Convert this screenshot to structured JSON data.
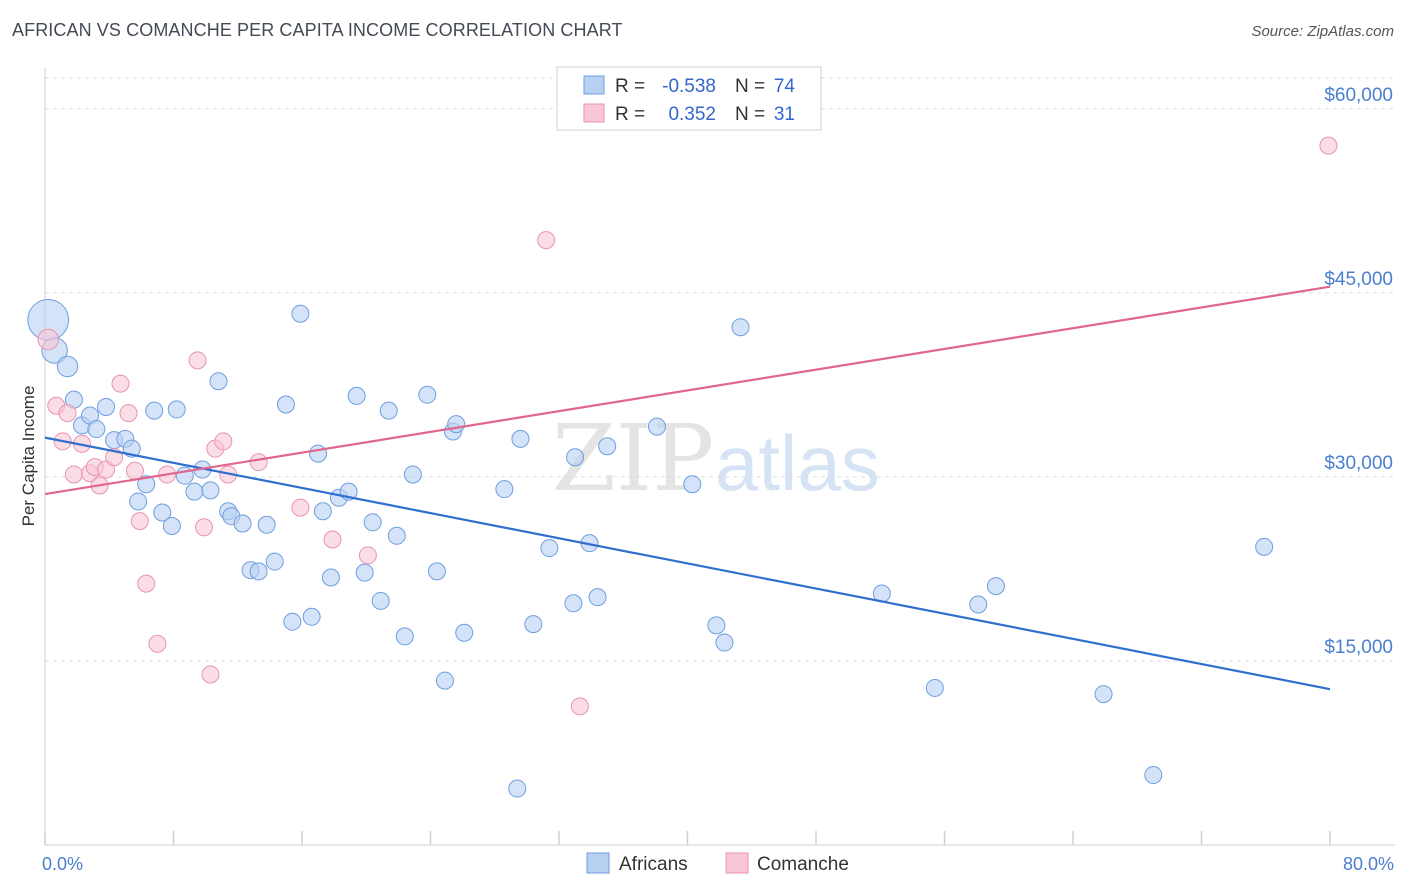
{
  "header": {
    "title": "AFRICAN VS COMANCHE PER CAPITA INCOME CORRELATION CHART",
    "source": "Source: ZipAtlas.com"
  },
  "watermark": {
    "zip": "ZIP",
    "atlas": "atlas"
  },
  "colors": {
    "africans_fill": "#b8d0f2",
    "africans_stroke": "#6f9ee0",
    "africans_line": "#2f6fd0",
    "comanche_fill": "#f8c6d6",
    "comanche_stroke": "#e894b2",
    "comanche_line": "#e0668f",
    "grid": "#dcdcdc",
    "tick_text": "#4a7fd0"
  },
  "legend": {
    "rows": [
      {
        "r_label": "R =",
        "r_value": "-0.538",
        "n_label": "N =",
        "n_value": "74"
      },
      {
        "r_label": "R =",
        "r_value": "0.352",
        "n_label": "N =",
        "n_value": "31"
      }
    ]
  },
  "chart_data": {
    "type": "scatter",
    "xlabel": "",
    "ylabel": "Per Capita Income",
    "xlim": [
      0,
      80
    ],
    "ylim": [
      0,
      63000
    ],
    "x_tick_labels": [
      "0.0%",
      "80.0%"
    ],
    "y_ticks": [
      15000,
      30000,
      45000,
      60000
    ],
    "y_tick_labels": [
      "$15,000",
      "$30,000",
      "$45,000",
      "$60,000"
    ],
    "grid": "horizontal dashed",
    "legend_position": "top-center",
    "series": [
      {
        "name": "Africans",
        "regression": {
          "x": [
            0,
            80
          ],
          "y": [
            33200,
            12700
          ]
        },
        "points": [
          [
            0.2,
            42800,
            2.4
          ],
          [
            0.6,
            40300,
            1.5
          ],
          [
            1.4,
            39000,
            1.2
          ],
          [
            1.8,
            36300,
            1
          ],
          [
            2.3,
            34200,
            1
          ],
          [
            2.8,
            35000,
            1
          ],
          [
            3.2,
            33900,
            1
          ],
          [
            3.8,
            35700,
            1
          ],
          [
            4.3,
            33000,
            1
          ],
          [
            5.0,
            33100,
            1
          ],
          [
            5.4,
            32300,
            1
          ],
          [
            5.8,
            28000,
            1
          ],
          [
            6.3,
            29400,
            1
          ],
          [
            6.8,
            35400,
            1
          ],
          [
            7.3,
            27100,
            1
          ],
          [
            7.9,
            26000,
            1
          ],
          [
            8.2,
            35500,
            1
          ],
          [
            8.7,
            30100,
            1
          ],
          [
            9.3,
            28800,
            1
          ],
          [
            9.8,
            30600,
            1
          ],
          [
            10.3,
            28900,
            1
          ],
          [
            10.8,
            37800,
            1
          ],
          [
            11.4,
            27200,
            1
          ],
          [
            11.6,
            26800,
            1
          ],
          [
            12.3,
            26200,
            1
          ],
          [
            12.8,
            22400,
            1
          ],
          [
            13.3,
            22300,
            1
          ],
          [
            13.8,
            26100,
            1
          ],
          [
            14.3,
            23100,
            1
          ],
          [
            15.0,
            35900,
            1
          ],
          [
            15.4,
            18200,
            1
          ],
          [
            15.9,
            43300,
            1
          ],
          [
            16.6,
            18600,
            1
          ],
          [
            17.0,
            31900,
            1
          ],
          [
            17.3,
            27200,
            1
          ],
          [
            17.8,
            21800,
            1
          ],
          [
            18.3,
            28300,
            1
          ],
          [
            18.9,
            28800,
            1
          ],
          [
            19.4,
            36600,
            1
          ],
          [
            19.9,
            22200,
            1
          ],
          [
            20.4,
            26300,
            1
          ],
          [
            20.9,
            19900,
            1
          ],
          [
            21.4,
            35400,
            1
          ],
          [
            21.9,
            25200,
            1
          ],
          [
            22.4,
            17000,
            1
          ],
          [
            22.9,
            30200,
            1
          ],
          [
            23.8,
            36700,
            1
          ],
          [
            24.4,
            22300,
            1
          ],
          [
            24.9,
            13400,
            1
          ],
          [
            25.4,
            33700,
            1
          ],
          [
            25.6,
            34300,
            1
          ],
          [
            26.1,
            17300,
            1
          ],
          [
            28.6,
            29000,
            1
          ],
          [
            29.4,
            4600,
            1
          ],
          [
            29.6,
            33100,
            1
          ],
          [
            30.4,
            18000,
            1
          ],
          [
            31.4,
            24200,
            1
          ],
          [
            32.9,
            19700,
            1
          ],
          [
            33.0,
            31600,
            1
          ],
          [
            33.9,
            24600,
            1
          ],
          [
            34.4,
            20200,
            1
          ],
          [
            35.0,
            32500,
            1
          ],
          [
            38.1,
            34100,
            1
          ],
          [
            40.3,
            29400,
            1
          ],
          [
            41.8,
            17900,
            1
          ],
          [
            42.3,
            16500,
            1
          ],
          [
            43.3,
            42200,
            1
          ],
          [
            52.1,
            20500,
            1
          ],
          [
            55.4,
            12800,
            1
          ],
          [
            58.1,
            19600,
            1
          ],
          [
            59.2,
            21100,
            1
          ],
          [
            65.9,
            12300,
            1
          ],
          [
            69.0,
            5700,
            1
          ],
          [
            75.9,
            24300,
            1
          ]
        ]
      },
      {
        "name": "Comanche",
        "regression": {
          "x": [
            0,
            80
          ],
          "y": [
            28600,
            45500
          ]
        },
        "points": [
          [
            0.2,
            41200,
            1.2
          ],
          [
            0.7,
            35800,
            1
          ],
          [
            1.1,
            32900,
            1
          ],
          [
            1.4,
            35200,
            1
          ],
          [
            1.8,
            30200,
            1
          ],
          [
            2.3,
            32700,
            1
          ],
          [
            2.8,
            30300,
            1
          ],
          [
            3.1,
            30800,
            1
          ],
          [
            3.4,
            29300,
            1
          ],
          [
            3.8,
            30600,
            1
          ],
          [
            4.3,
            31600,
            1
          ],
          [
            4.7,
            37600,
            1
          ],
          [
            5.2,
            35200,
            1
          ],
          [
            5.6,
            30500,
            1
          ],
          [
            5.9,
            26400,
            1
          ],
          [
            6.3,
            21300,
            1
          ],
          [
            7.0,
            16400,
            1
          ],
          [
            7.6,
            30200,
            1
          ],
          [
            9.5,
            39500,
            1
          ],
          [
            9.9,
            25900,
            1
          ],
          [
            10.3,
            13900,
            1
          ],
          [
            10.6,
            32300,
            1
          ],
          [
            11.1,
            32900,
            1
          ],
          [
            11.4,
            30200,
            1
          ],
          [
            13.3,
            31200,
            1
          ],
          [
            15.9,
            27500,
            1
          ],
          [
            17.9,
            24900,
            1
          ],
          [
            20.1,
            23600,
            1
          ],
          [
            31.2,
            49300,
            1
          ],
          [
            33.3,
            11300,
            1
          ],
          [
            79.9,
            57000,
            1
          ]
        ]
      }
    ]
  }
}
